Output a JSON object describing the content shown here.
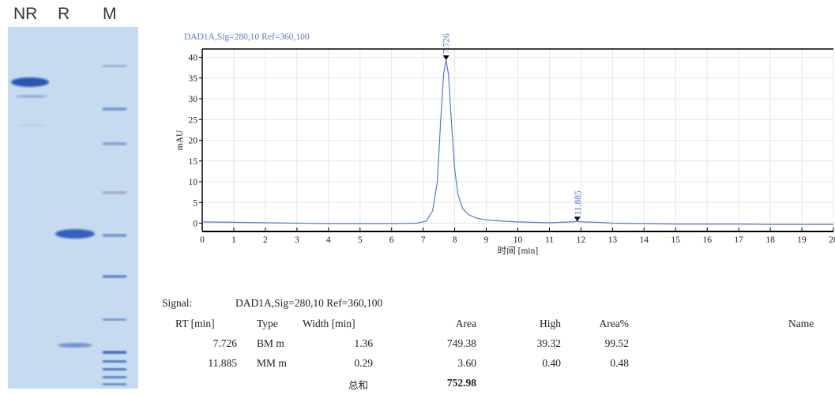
{
  "gel": {
    "lanes": [
      "NR",
      "R",
      "M"
    ]
  },
  "chart_data": {
    "type": "line",
    "title": "DAD1A,Sig=280,10  Ref=360,100",
    "xlabel": "时间 [min]",
    "ylabel": "mAU",
    "xlim": [
      0,
      20
    ],
    "ylim": [
      -2,
      42
    ],
    "xticks": [
      0,
      1,
      2,
      3,
      4,
      5,
      6,
      7,
      8,
      9,
      10,
      11,
      12,
      13,
      14,
      15,
      16,
      17,
      18,
      19,
      20
    ],
    "yticks": [
      0,
      5,
      10,
      15,
      20,
      25,
      30,
      35,
      40
    ],
    "grid": true,
    "series": [
      {
        "x": [
          0,
          1,
          2,
          3,
          4,
          5,
          6,
          6.8,
          7.1,
          7.3,
          7.45,
          7.55,
          7.65,
          7.726,
          7.8,
          7.9,
          8.0,
          8.1,
          8.25,
          8.45,
          8.7,
          9.0,
          9.5,
          10,
          11,
          11.7,
          11.885,
          12.1,
          12.5,
          13,
          14,
          15,
          16,
          17,
          18,
          19,
          20
        ],
        "values": [
          0.3,
          0.2,
          0.1,
          0.0,
          -0.1,
          -0.1,
          -0.1,
          0.0,
          0.5,
          3.0,
          10.0,
          24.0,
          36.0,
          39.32,
          36.0,
          24.0,
          13.0,
          7.0,
          3.5,
          2.0,
          1.2,
          0.8,
          0.5,
          0.3,
          0.1,
          0.3,
          0.4,
          0.3,
          0.2,
          0.0,
          -0.1,
          -0.2,
          -0.2,
          -0.2,
          -0.3,
          -0.3,
          -0.3
        ]
      }
    ],
    "peak_labels": [
      {
        "x": 7.726,
        "y": 39.32,
        "text": "7.726"
      },
      {
        "x": 11.885,
        "y": 0.4,
        "text": "11.885"
      }
    ],
    "colors": {
      "trace": "#5577cc",
      "axis": "#000000"
    }
  },
  "table": {
    "signal_label": "Signal:",
    "signal_value": "DAD1A,Sig=280,10  Ref=360,100",
    "headers": {
      "rt": "RT [min]",
      "type": "Type",
      "width": "Width [min]",
      "area": "Area",
      "high": "High",
      "area_pct": "Area%",
      "name": "Name"
    },
    "rows": [
      {
        "rt": "7.726",
        "type": "BM m",
        "width": "1.36",
        "area": "749.38",
        "high": "39.32",
        "area_pct": "99.52"
      },
      {
        "rt": "11.885",
        "type": "MM m",
        "width": "0.29",
        "area": "3.60",
        "high": "0.40",
        "area_pct": "0.48"
      }
    ],
    "total_label": "总和",
    "total_value": "752.98"
  }
}
